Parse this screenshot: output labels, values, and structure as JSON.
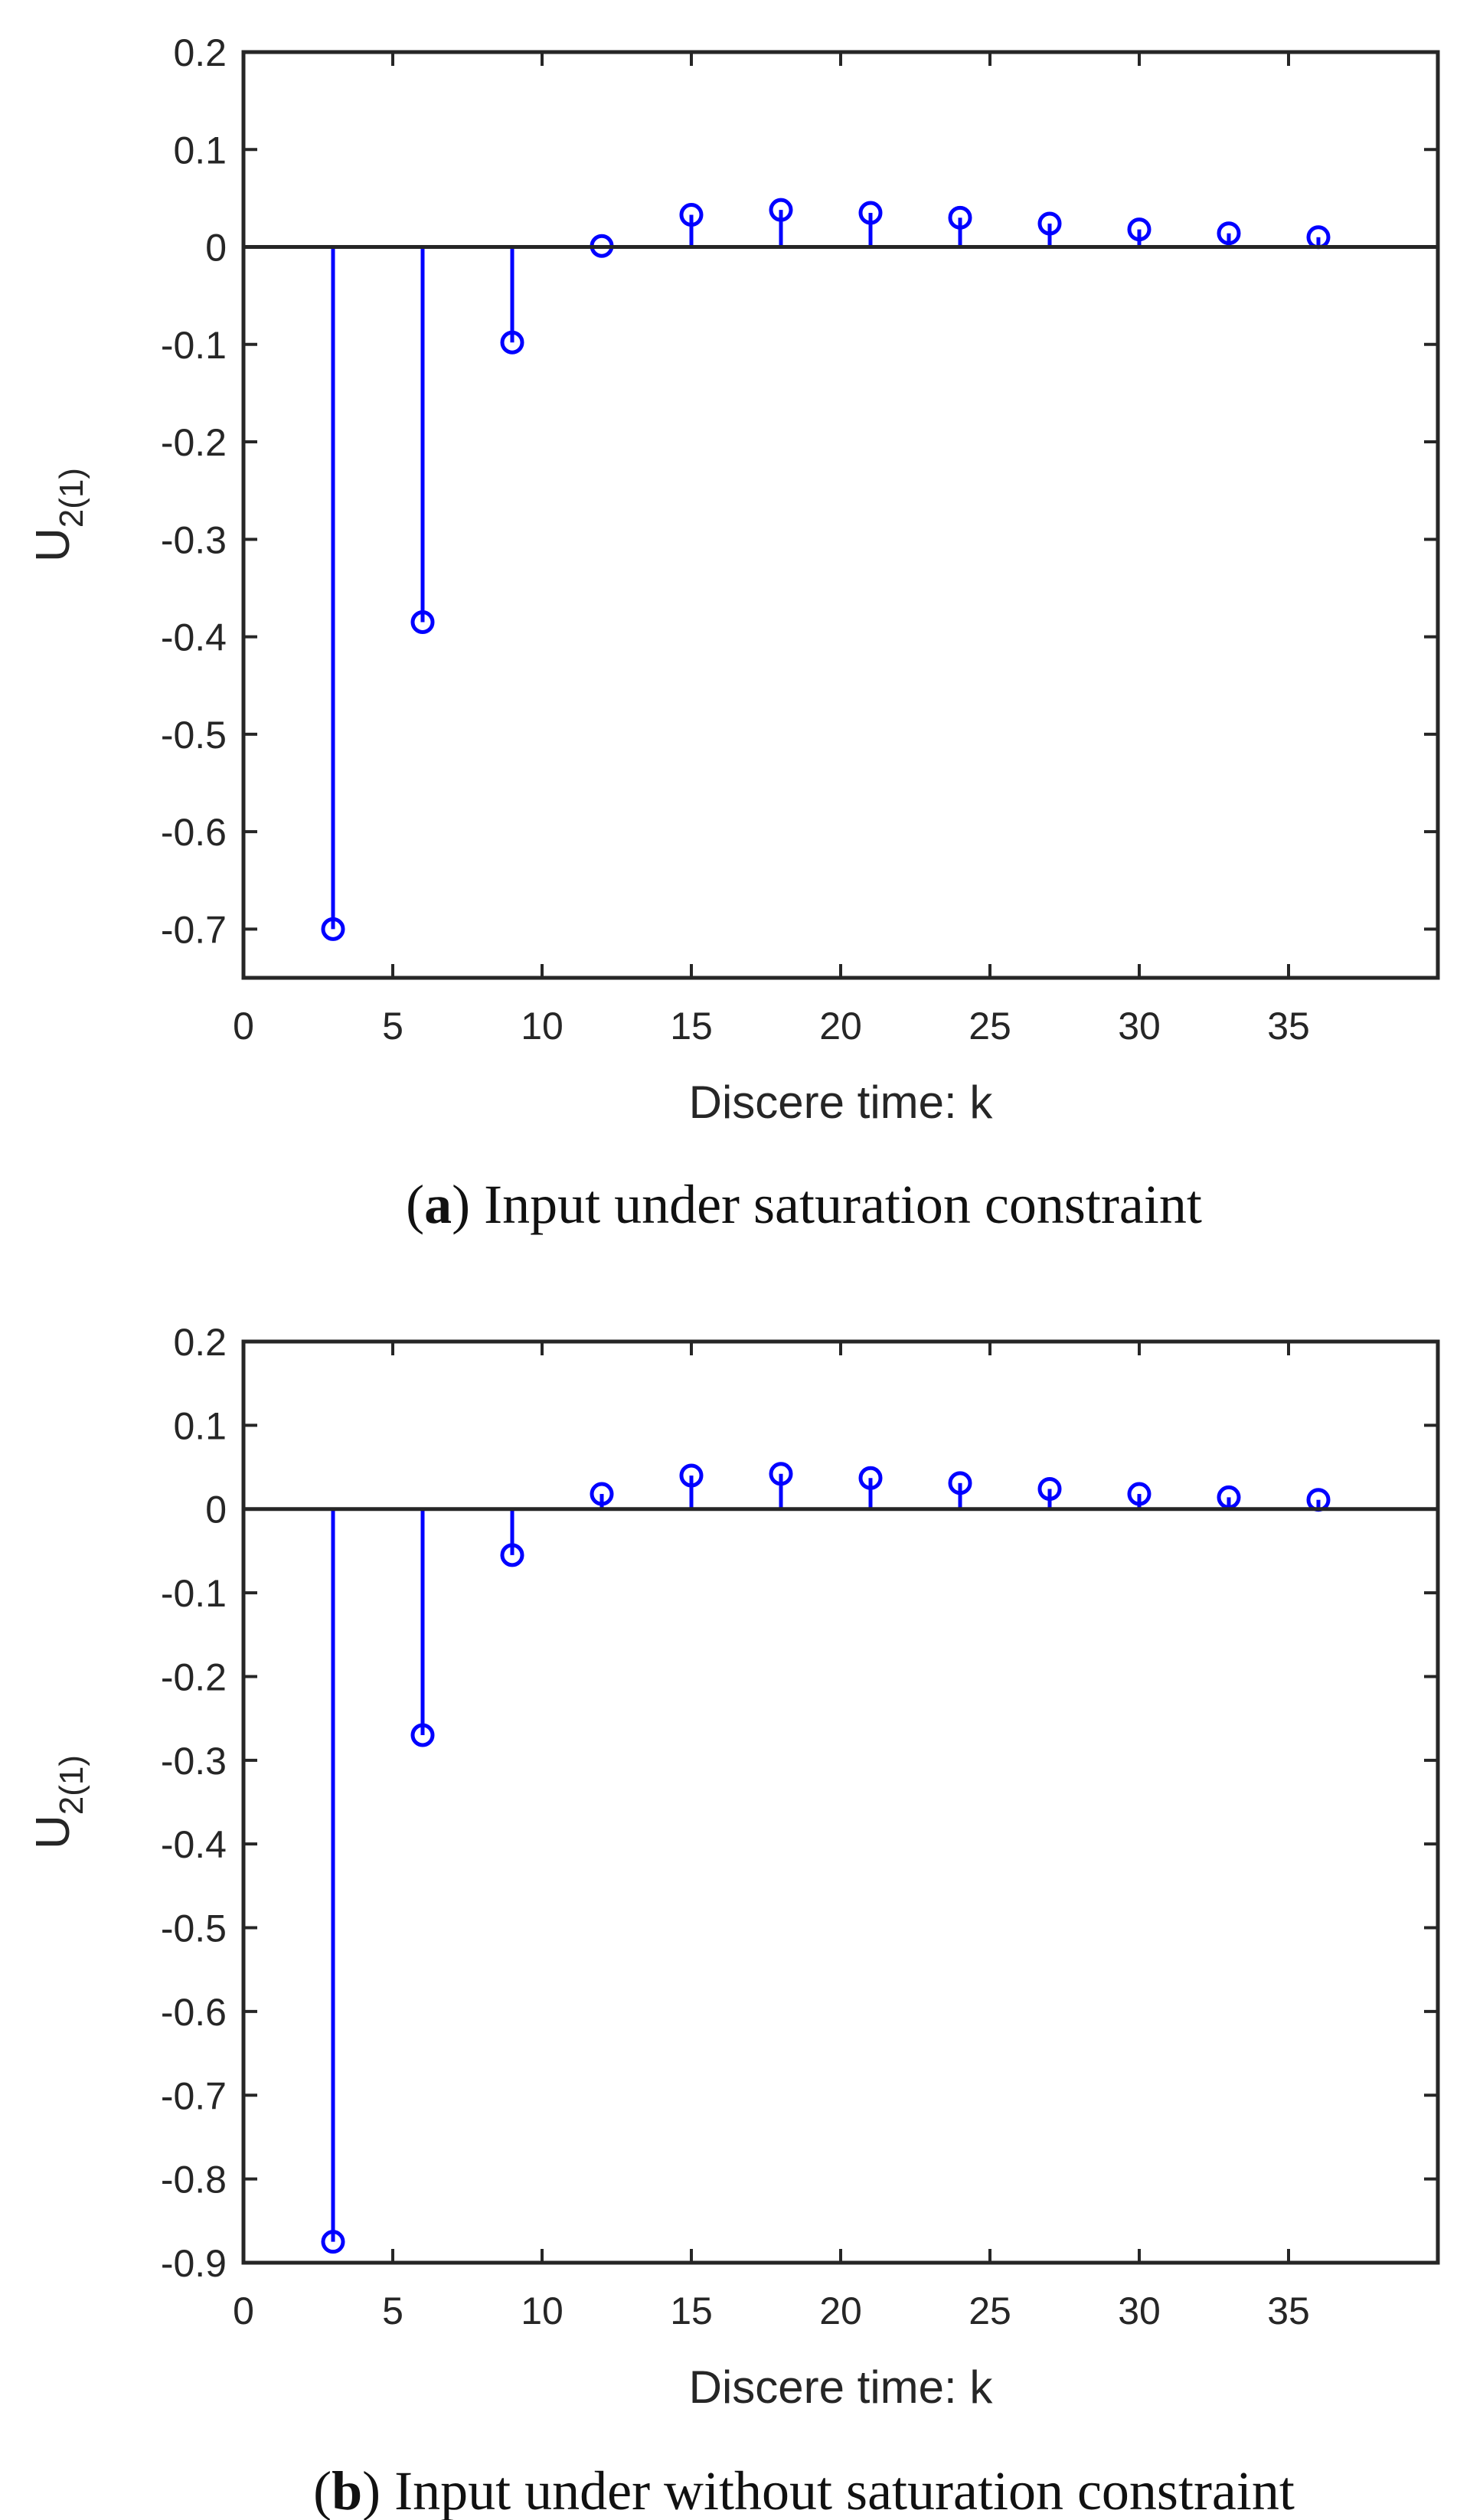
{
  "chart_data": [
    {
      "type": "stem",
      "caption_letter": "a",
      "caption_open": "(",
      "caption_close": ")",
      "caption_text": " Input under saturation constraint",
      "xlabel": "Discere time: k",
      "ylabel_main": "U",
      "ylabel_sub": "2(1)",
      "xlim": [
        0,
        40
      ],
      "ylim": [
        -0.75,
        0.2
      ],
      "xticks": [
        0,
        5,
        10,
        15,
        20,
        25,
        30,
        35
      ],
      "xtick_labels": [
        "0",
        "5",
        "10",
        "15",
        "20",
        "25",
        "30",
        "35"
      ],
      "yticks": [
        0.2,
        0.1,
        0,
        -0.1,
        -0.2,
        -0.3,
        -0.4,
        -0.5,
        -0.6,
        -0.7
      ],
      "ytick_labels": [
        "0.2",
        "0.1",
        "0",
        "-0.1",
        "-0.2",
        "-0.3",
        "-0.4",
        "-0.5",
        "-0.6",
        "-0.7"
      ],
      "grid": false,
      "series_color": "#0000ff",
      "x": [
        3,
        6,
        9,
        12,
        15,
        18,
        21,
        24,
        27,
        30,
        33,
        36
      ],
      "y": [
        -0.7,
        -0.385,
        -0.098,
        0.001,
        0.033,
        0.038,
        0.035,
        0.03,
        0.024,
        0.018,
        0.014,
        0.01
      ]
    },
    {
      "type": "stem",
      "caption_letter": "b",
      "caption_open": "(",
      "caption_close": ")",
      "caption_text": " Input under without saturation constraint",
      "xlabel": "Discere time: k",
      "ylabel_main": "U",
      "ylabel_sub": "2(1)",
      "xlim": [
        0,
        40
      ],
      "ylim": [
        -0.9,
        0.2
      ],
      "xticks": [
        0,
        5,
        10,
        15,
        20,
        25,
        30,
        35
      ],
      "xtick_labels": [
        "0",
        "5",
        "10",
        "15",
        "20",
        "25",
        "30",
        "35"
      ],
      "yticks": [
        0.2,
        0.1,
        0,
        -0.1,
        -0.2,
        -0.3,
        -0.4,
        -0.5,
        -0.6,
        -0.7,
        -0.8,
        -0.9
      ],
      "ytick_labels": [
        "0.2",
        "0.1",
        "0",
        "-0.1",
        "-0.2",
        "-0.3",
        "-0.4",
        "-0.5",
        "-0.6",
        "-0.7",
        "-0.8",
        "-0.9"
      ],
      "grid": false,
      "series_color": "#0000ff",
      "x": [
        3,
        6,
        9,
        12,
        15,
        18,
        21,
        24,
        27,
        30,
        33,
        36
      ],
      "y": [
        -0.875,
        -0.27,
        -0.055,
        0.018,
        0.04,
        0.042,
        0.037,
        0.031,
        0.024,
        0.018,
        0.014,
        0.011
      ]
    }
  ]
}
